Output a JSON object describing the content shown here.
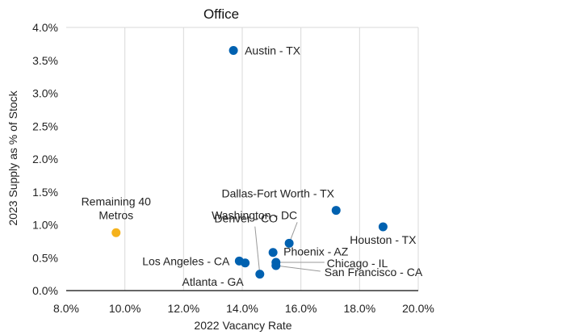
{
  "chart_data": {
    "type": "scatter",
    "title": "Office",
    "xlabel": "2022 Vacancy Rate",
    "ylabel": "2023 Supply as % of Stock",
    "xlim": [
      0.08,
      0.2
    ],
    "ylim": [
      0.0,
      0.04
    ],
    "x_ticks": [
      0.08,
      0.1,
      0.12,
      0.14,
      0.16,
      0.18,
      0.2
    ],
    "x_tick_labels": [
      "8.0%",
      "10.0%",
      "12.0%",
      "14.0%",
      "16.0%",
      "18.0%",
      "20.0%"
    ],
    "y_ticks": [
      0.0,
      0.005,
      0.01,
      0.015,
      0.02,
      0.025,
      0.03,
      0.035,
      0.04
    ],
    "y_tick_labels": [
      "0.0%",
      "0.5%",
      "1.0%",
      "1.5%",
      "2.0%",
      "2.5%",
      "3.0%",
      "3.5%",
      "4.0%"
    ],
    "grid": "vertical",
    "colors": {
      "metro": "#0061b0",
      "remaining": "#f5b21c",
      "grid": "#d9d9d9",
      "axis": "#333333",
      "leader": "#999999"
    },
    "points": [
      {
        "label": "Austin - TX",
        "x": 0.137,
        "y": 0.0365,
        "group": "metro"
      },
      {
        "label": "Dallas-Fort Worth - TX",
        "x": 0.172,
        "y": 0.0122,
        "group": "metro"
      },
      {
        "label": "Houston - TX",
        "x": 0.188,
        "y": 0.0097,
        "group": "metro"
      },
      {
        "label": "Washington - DC",
        "x": 0.156,
        "y": 0.0072,
        "group": "metro"
      },
      {
        "label": "Denver - CO",
        "x": 0.146,
        "y": 0.0025,
        "group": "metro"
      },
      {
        "label": "Phoenix - AZ",
        "x": 0.1505,
        "y": 0.0058,
        "group": "metro"
      },
      {
        "label": "Chicago - IL",
        "x": 0.1515,
        "y": 0.0043,
        "group": "metro"
      },
      {
        "label": "San Francisco - CA",
        "x": 0.1515,
        "y": 0.0038,
        "group": "metro"
      },
      {
        "label": "Los Angeles - CA",
        "x": 0.139,
        "y": 0.0045,
        "group": "metro"
      },
      {
        "label": "Atlanta - GA",
        "x": 0.141,
        "y": 0.0042,
        "group": "metro"
      },
      {
        "label": "Remaining 40\nMetros",
        "x": 0.097,
        "y": 0.0088,
        "group": "remaining"
      }
    ]
  }
}
